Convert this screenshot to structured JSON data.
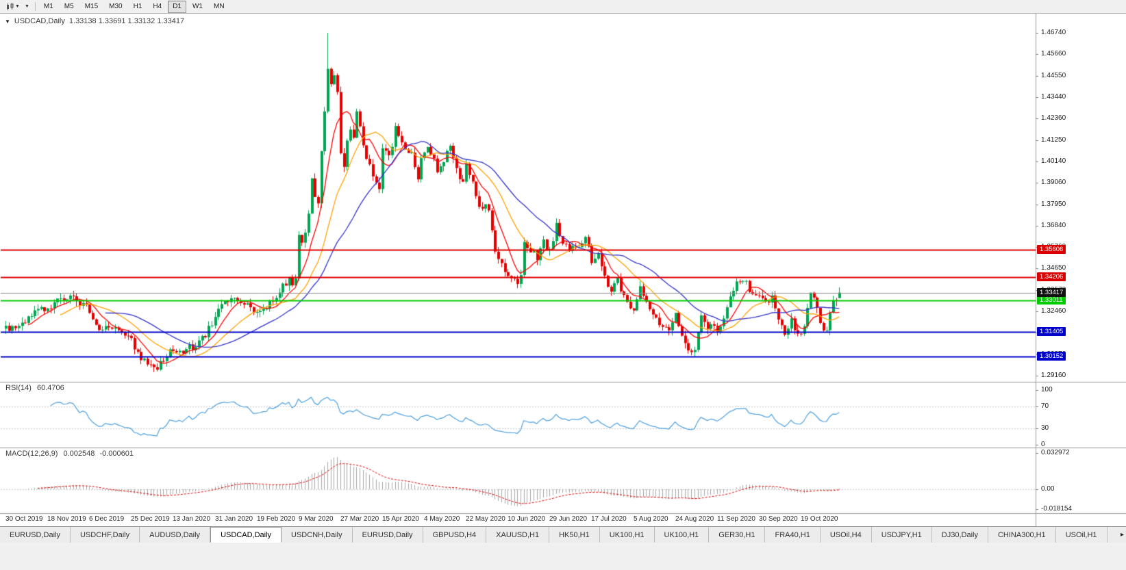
{
  "toolbar": {
    "timeframes": [
      {
        "label": "M1",
        "active": false
      },
      {
        "label": "M5",
        "active": false
      },
      {
        "label": "M15",
        "active": false
      },
      {
        "label": "M30",
        "active": false
      },
      {
        "label": "H1",
        "active": false
      },
      {
        "label": "H4",
        "active": false
      },
      {
        "label": "D1",
        "active": true
      },
      {
        "label": "W1",
        "active": false
      },
      {
        "label": "MN",
        "active": false
      }
    ]
  },
  "chart": {
    "collapse_icon": "▼",
    "symbol_period": "USDCAD,Daily",
    "ohlc": "1.33138 1.33691 1.33132 1.33417"
  },
  "chart_data": {
    "type": "candlestick",
    "symbol": "USDCAD",
    "period": "Daily",
    "current_bar": {
      "open": 1.33138,
      "high": 1.33691,
      "low": 1.33132,
      "close": 1.33417
    },
    "num_candles": 260,
    "candle_spacing": 4.7,
    "extreme_high": 1.4674,
    "extreme_low": 1.2938,
    "y_ticks": [
      "1.46740",
      "1.45660",
      "1.44550",
      "1.43440",
      "1.42360",
      "1.41250",
      "1.40140",
      "1.39060",
      "1.37950",
      "1.36840",
      "1.35760",
      "1.34650",
      "1.33570",
      "1.32460",
      "1.31380",
      "1.30270",
      "1.29160"
    ],
    "x_ticks": [
      "30 Oct 2019",
      "18 Nov 2019",
      "6 Dec 2019",
      "25 Dec 2019",
      "13 Jan 2020",
      "31 Jan 2020",
      "19 Feb 2020",
      "9 Mar 2020",
      "27 Mar 2020",
      "15 Apr 2020",
      "4 May 2020",
      "22 May 2020",
      "10 Jun 2020",
      "29 Jun 2020",
      "17 Jul 2020",
      "5 Aug 2020",
      "24 Aug 2020",
      "11 Sep 2020",
      "30 Sep 2020",
      "19 Oct 2020"
    ],
    "bars_per_xtick": 13,
    "anchors": [
      [
        0,
        1.3172
      ],
      [
        3,
        1.315
      ],
      [
        6,
        1.32
      ],
      [
        10,
        1.3245
      ],
      [
        13,
        1.327
      ],
      [
        16,
        1.3305
      ],
      [
        19,
        1.332
      ],
      [
        22,
        1.33
      ],
      [
        26,
        1.3255
      ],
      [
        28,
        1.317
      ],
      [
        31,
        1.3175
      ],
      [
        34,
        1.3165
      ],
      [
        37,
        1.313
      ],
      [
        39,
        1.309
      ],
      [
        41,
        1.303
      ],
      [
        44,
        1.2965
      ],
      [
        47,
        1.2962
      ],
      [
        50,
        1.301
      ],
      [
        52,
        1.3055
      ],
      [
        55,
        1.304
      ],
      [
        58,
        1.3068
      ],
      [
        61,
        1.3105
      ],
      [
        63,
        1.315
      ],
      [
        65,
        1.323
      ],
      [
        67,
        1.329
      ],
      [
        70,
        1.3295
      ],
      [
        73,
        1.3302
      ],
      [
        76,
        1.326
      ],
      [
        78,
        1.3225
      ],
      [
        80,
        1.3255
      ],
      [
        83,
        1.331
      ],
      [
        86,
        1.338
      ],
      [
        88,
        1.342
      ],
      [
        89,
        1.338
      ],
      [
        90,
        1.342
      ],
      [
        91,
        1.366
      ],
      [
        92,
        1.362
      ],
      [
        93,
        1.3645
      ],
      [
        94,
        1.376
      ],
      [
        95,
        1.392
      ],
      [
        96,
        1.385
      ],
      [
        97,
        1.38
      ],
      [
        98,
        1.405
      ],
      [
        99,
        1.428
      ],
      [
        100,
        1.45
      ],
      [
        101,
        1.443
      ],
      [
        102,
        1.4452
      ],
      [
        103,
        1.435
      ],
      [
        104,
        1.405
      ],
      [
        105,
        1.399
      ],
      [
        106,
        1.41
      ],
      [
        107,
        1.42
      ],
      [
        108,
        1.415
      ],
      [
        109,
        1.426
      ],
      [
        110,
        1.419
      ],
      [
        112,
        1.402
      ],
      [
        114,
        1.395
      ],
      [
        116,
        1.389
      ],
      [
        117,
        1.409
      ],
      [
        119,
        1.403
      ],
      [
        121,
        1.419
      ],
      [
        123,
        1.41
      ],
      [
        126,
        1.404
      ],
      [
        128,
        1.394
      ],
      [
        130,
        1.408
      ],
      [
        132,
        1.406
      ],
      [
        134,
        1.397
      ],
      [
        136,
        1.403
      ],
      [
        138,
        1.41
      ],
      [
        140,
        1.399
      ],
      [
        142,
        1.39
      ],
      [
        143,
        1.399
      ],
      [
        145,
        1.389
      ],
      [
        147,
        1.378
      ],
      [
        150,
        1.3775
      ],
      [
        152,
        1.356
      ],
      [
        154,
        1.35
      ],
      [
        156,
        1.342
      ],
      [
        158,
        1.339
      ],
      [
        160,
        1.341
      ],
      [
        161,
        1.362
      ],
      [
        163,
        1.355
      ],
      [
        165,
        1.353
      ],
      [
        167,
        1.36
      ],
      [
        169,
        1.355
      ],
      [
        171,
        1.368
      ],
      [
        173,
        1.358
      ],
      [
        175,
        1.357
      ],
      [
        178,
        1.359
      ],
      [
        180,
        1.362
      ],
      [
        182,
        1.351
      ],
      [
        184,
        1.353
      ],
      [
        186,
        1.341
      ],
      [
        188,
        1.336
      ],
      [
        190,
        1.341
      ],
      [
        192,
        1.331
      ],
      [
        195,
        1.326
      ],
      [
        197,
        1.338
      ],
      [
        199,
        1.331
      ],
      [
        201,
        1.322
      ],
      [
        204,
        1.316
      ],
      [
        206,
        1.317
      ],
      [
        208,
        1.323
      ],
      [
        210,
        1.31
      ],
      [
        212,
        1.304
      ],
      [
        214,
        1.306
      ],
      [
        216,
        1.323
      ],
      [
        218,
        1.316
      ],
      [
        221,
        1.316
      ],
      [
        223,
        1.32
      ],
      [
        225,
        1.331
      ],
      [
        227,
        1.338
      ],
      [
        230,
        1.338
      ],
      [
        232,
        1.335
      ],
      [
        234,
        1.332
      ],
      [
        236,
        1.33
      ],
      [
        238,
        1.332
      ],
      [
        240,
        1.319
      ],
      [
        242,
        1.313
      ],
      [
        244,
        1.321
      ],
      [
        246,
        1.312
      ],
      [
        248,
        1.318
      ],
      [
        250,
        1.332
      ],
      [
        251,
        1.333
      ],
      [
        252,
        1.325
      ],
      [
        253,
        1.318
      ],
      [
        254,
        1.3155
      ],
      [
        255,
        1.3165
      ],
      [
        256,
        1.324
      ],
      [
        257,
        1.332
      ],
      [
        258,
        1.331
      ],
      [
        259,
        1.33417
      ]
    ],
    "price_lines": [
      {
        "price": 1.35606,
        "label": "1.35606",
        "color": "#dd0000",
        "width": 2
      },
      {
        "price": 1.34206,
        "label": "1.34206",
        "color": "#dd0000",
        "width": 2
      },
      {
        "price": 1.33011,
        "label": "1.33011",
        "color": "#00cc00",
        "width": 2
      },
      {
        "price": 1.31405,
        "label": "1.31405",
        "color": "#0000cc",
        "width": 2
      },
      {
        "price": 1.30152,
        "label": "1.30152",
        "color": "#0000cc",
        "width": 2
      }
    ],
    "current_price": {
      "price": 1.33417,
      "label": "1.33417",
      "color": "#111111"
    },
    "moving_averages": [
      {
        "period": 8,
        "color": "#ff0000"
      },
      {
        "period": 18,
        "color": "#ffa200"
      },
      {
        "period": 32,
        "color": "#3333cc"
      }
    ],
    "colors": {
      "up": "#00a651",
      "down": "#e60000",
      "rsi_line": "#4a9ede",
      "macd_hist": "#a6a6a6",
      "macd_signal": "#e00000",
      "grid_dotted": "#c8c8c8",
      "axis_line": "#9a9a9a",
      "current_line": "#8a8a8a"
    }
  },
  "rsi": {
    "name": "RSI(14)",
    "value": "60.4706",
    "levels": [
      {
        "label": "100",
        "value": 100
      },
      {
        "label": "70",
        "value": 70
      },
      {
        "label": "30",
        "value": 30
      },
      {
        "label": "0",
        "value": 0
      }
    ]
  },
  "macd": {
    "name": "MACD(12,26,9)",
    "value_main": "0.002548",
    "value_signal": "-0.000601",
    "levels": [
      {
        "label": "0.032972",
        "value": 0.032972
      },
      {
        "label": "0.00",
        "value": 0
      },
      {
        "label": "-0.018154",
        "value": -0.018154
      }
    ]
  },
  "tabs": {
    "overflow_label": "▸",
    "items": [
      {
        "label": "EURUSD,Daily",
        "active": false
      },
      {
        "label": "USDCHF,Daily",
        "active": false
      },
      {
        "label": "AUDUSD,Daily",
        "active": false
      },
      {
        "label": "USDCAD,Daily",
        "active": true
      },
      {
        "label": "USDCNH,Daily",
        "active": false
      },
      {
        "label": "EURUSD,Daily",
        "active": false
      },
      {
        "label": "GBPUSD,H4",
        "active": false
      },
      {
        "label": "XAUUSD,H1",
        "active": false
      },
      {
        "label": "HK50,H1",
        "active": false
      },
      {
        "label": "UK100,H1",
        "active": false
      },
      {
        "label": "UK100,H1",
        "active": false
      },
      {
        "label": "GER30,H1",
        "active": false
      },
      {
        "label": "FRA40,H1",
        "active": false
      },
      {
        "label": "USOil,H4",
        "active": false
      },
      {
        "label": "USDJPY,H1",
        "active": false
      },
      {
        "label": "DJ30,Daily",
        "active": false
      },
      {
        "label": "CHINA300,H1",
        "active": false
      },
      {
        "label": "USOil,H1",
        "active": false
      }
    ]
  }
}
